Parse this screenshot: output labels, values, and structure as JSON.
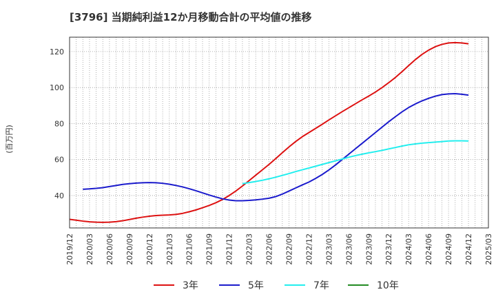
{
  "chart_data": {
    "type": "line",
    "title": "[3796]  当期純利益12か月移動合計の平均値の推移",
    "ylabel": "(百万円)",
    "xlabel": "",
    "ylim": [
      22,
      128
    ],
    "yticks": [
      40,
      60,
      80,
      100,
      120
    ],
    "x_ticks": [
      "2019/12",
      "2020/03",
      "2020/06",
      "2020/09",
      "2020/12",
      "2021/03",
      "2021/06",
      "2021/09",
      "2021/12",
      "2022/03",
      "2022/06",
      "2022/09",
      "2022/12",
      "2023/03",
      "2023/06",
      "2023/09",
      "2023/12",
      "2024/03",
      "2024/06",
      "2024/09",
      "2024/12",
      "2025/03"
    ],
    "grid": true,
    "legend_position": "bottom",
    "series": [
      {
        "name": "3年",
        "color": "#dd1111",
        "points": [
          [
            "2019/12",
            26.8
          ],
          [
            "2020/01",
            26.3
          ],
          [
            "2020/02",
            25.8
          ],
          [
            "2020/03",
            25.4
          ],
          [
            "2020/04",
            25.2
          ],
          [
            "2020/05",
            25.1
          ],
          [
            "2020/06",
            25.2
          ],
          [
            "2020/07",
            25.5
          ],
          [
            "2020/08",
            26.0
          ],
          [
            "2020/09",
            26.7
          ],
          [
            "2020/10",
            27.4
          ],
          [
            "2020/11",
            28.0
          ],
          [
            "2020/12",
            28.5
          ],
          [
            "2021/01",
            28.9
          ],
          [
            "2021/02",
            29.1
          ],
          [
            "2021/03",
            29.2
          ],
          [
            "2021/04",
            29.5
          ],
          [
            "2021/05",
            30.1
          ],
          [
            "2021/06",
            31.0
          ],
          [
            "2021/07",
            32.0
          ],
          [
            "2021/08",
            33.2
          ],
          [
            "2021/09",
            34.5
          ],
          [
            "2021/10",
            36.0
          ],
          [
            "2021/11",
            37.8
          ],
          [
            "2021/12",
            40.0
          ],
          [
            "2022/01",
            42.5
          ],
          [
            "2022/02",
            45.3
          ],
          [
            "2022/03",
            48.3
          ],
          [
            "2022/04",
            51.3
          ],
          [
            "2022/05",
            54.3
          ],
          [
            "2022/06",
            57.3
          ],
          [
            "2022/07",
            60.5
          ],
          [
            "2022/08",
            63.8
          ],
          [
            "2022/09",
            67.0
          ],
          [
            "2022/10",
            70.0
          ],
          [
            "2022/11",
            72.7
          ],
          [
            "2022/12",
            75.0
          ],
          [
            "2023/01",
            77.3
          ],
          [
            "2023/02",
            79.6
          ],
          [
            "2023/03",
            82.0
          ],
          [
            "2023/04",
            84.3
          ],
          [
            "2023/05",
            86.6
          ],
          [
            "2023/06",
            88.8
          ],
          [
            "2023/07",
            91.0
          ],
          [
            "2023/08",
            93.2
          ],
          [
            "2023/09",
            95.3
          ],
          [
            "2023/10",
            97.5
          ],
          [
            "2023/11",
            100.0
          ],
          [
            "2023/12",
            102.7
          ],
          [
            "2024/01",
            105.6
          ],
          [
            "2024/02",
            108.8
          ],
          [
            "2024/03",
            112.2
          ],
          [
            "2024/04",
            115.5
          ],
          [
            "2024/05",
            118.4
          ],
          [
            "2024/06",
            120.8
          ],
          [
            "2024/07",
            122.7
          ],
          [
            "2024/08",
            124.0
          ],
          [
            "2024/09",
            124.8
          ],
          [
            "2024/10",
            125.0
          ],
          [
            "2024/11",
            124.8
          ],
          [
            "2024/12",
            124.3
          ]
        ]
      },
      {
        "name": "5年",
        "color": "#1a1acc",
        "points": [
          [
            "2020/02",
            43.5
          ],
          [
            "2020/03",
            43.7
          ],
          [
            "2020/04",
            44.0
          ],
          [
            "2020/05",
            44.4
          ],
          [
            "2020/06",
            45.0
          ],
          [
            "2020/07",
            45.6
          ],
          [
            "2020/08",
            46.2
          ],
          [
            "2020/09",
            46.6
          ],
          [
            "2020/10",
            46.9
          ],
          [
            "2020/11",
            47.1
          ],
          [
            "2020/12",
            47.2
          ],
          [
            "2021/01",
            47.1
          ],
          [
            "2021/02",
            46.8
          ],
          [
            "2021/03",
            46.3
          ],
          [
            "2021/04",
            45.6
          ],
          [
            "2021/05",
            44.8
          ],
          [
            "2021/06",
            43.8
          ],
          [
            "2021/07",
            42.7
          ],
          [
            "2021/08",
            41.5
          ],
          [
            "2021/09",
            40.3
          ],
          [
            "2021/10",
            39.2
          ],
          [
            "2021/11",
            38.2
          ],
          [
            "2021/12",
            37.5
          ],
          [
            "2022/01",
            37.1
          ],
          [
            "2022/02",
            37.1
          ],
          [
            "2022/03",
            37.3
          ],
          [
            "2022/04",
            37.6
          ],
          [
            "2022/05",
            38.0
          ],
          [
            "2022/06",
            38.5
          ],
          [
            "2022/07",
            39.4
          ],
          [
            "2022/08",
            40.8
          ],
          [
            "2022/09",
            42.5
          ],
          [
            "2022/10",
            44.2
          ],
          [
            "2022/11",
            45.9
          ],
          [
            "2022/12",
            47.5
          ],
          [
            "2023/01",
            49.5
          ],
          [
            "2023/02",
            51.7
          ],
          [
            "2023/03",
            54.2
          ],
          [
            "2023/04",
            57.0
          ],
          [
            "2023/05",
            60.0
          ],
          [
            "2023/06",
            63.0
          ],
          [
            "2023/07",
            66.0
          ],
          [
            "2023/08",
            69.0
          ],
          [
            "2023/09",
            72.0
          ],
          [
            "2023/10",
            75.0
          ],
          [
            "2023/11",
            78.0
          ],
          [
            "2023/12",
            81.0
          ],
          [
            "2024/01",
            83.8
          ],
          [
            "2024/02",
            86.5
          ],
          [
            "2024/03",
            88.9
          ],
          [
            "2024/04",
            90.9
          ],
          [
            "2024/05",
            92.6
          ],
          [
            "2024/06",
            94.0
          ],
          [
            "2024/07",
            95.2
          ],
          [
            "2024/08",
            96.1
          ],
          [
            "2024/09",
            96.5
          ],
          [
            "2024/10",
            96.6
          ],
          [
            "2024/11",
            96.3
          ],
          [
            "2024/12",
            95.8
          ]
        ]
      },
      {
        "name": "7年",
        "color": "#22eeee",
        "points": [
          [
            "2022/02",
            46.6
          ],
          [
            "2022/03",
            47.2
          ],
          [
            "2022/04",
            47.8
          ],
          [
            "2022/05",
            48.5
          ],
          [
            "2022/06",
            49.3
          ],
          [
            "2022/07",
            50.2
          ],
          [
            "2022/08",
            51.2
          ],
          [
            "2022/09",
            52.2
          ],
          [
            "2022/10",
            53.3
          ],
          [
            "2022/11",
            54.3
          ],
          [
            "2022/12",
            55.3
          ],
          [
            "2023/01",
            56.3
          ],
          [
            "2023/02",
            57.3
          ],
          [
            "2023/03",
            58.3
          ],
          [
            "2023/04",
            59.3
          ],
          [
            "2023/05",
            60.3
          ],
          [
            "2023/06",
            61.3
          ],
          [
            "2023/07",
            62.2
          ],
          [
            "2023/08",
            63.0
          ],
          [
            "2023/09",
            63.7
          ],
          [
            "2023/10",
            64.4
          ],
          [
            "2023/11",
            65.1
          ],
          [
            "2023/12",
            65.9
          ],
          [
            "2024/01",
            66.7
          ],
          [
            "2024/02",
            67.5
          ],
          [
            "2024/03",
            68.2
          ],
          [
            "2024/04",
            68.7
          ],
          [
            "2024/05",
            69.1
          ],
          [
            "2024/06",
            69.4
          ],
          [
            "2024/07",
            69.7
          ],
          [
            "2024/08",
            70.0
          ],
          [
            "2024/09",
            70.3
          ],
          [
            "2024/10",
            70.4
          ],
          [
            "2024/11",
            70.4
          ],
          [
            "2024/12",
            70.3
          ]
        ]
      },
      {
        "name": "10年",
        "color": "#228b22",
        "points": []
      }
    ]
  }
}
